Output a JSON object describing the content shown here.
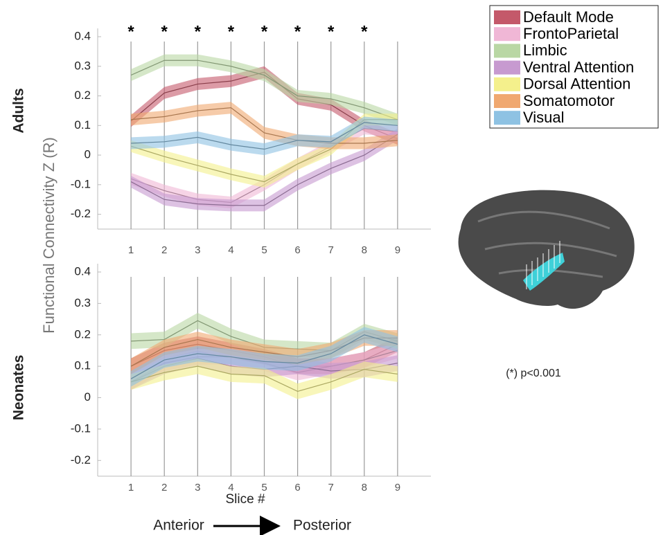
{
  "y_label": "Functional Connectivity Z (R)",
  "x_label": "Slice #",
  "direction": {
    "start": "Anterior",
    "end": "Posterior"
  },
  "footnote": "(*) p<0.001",
  "chart_data": [
    {
      "type": "line",
      "title": "Adults",
      "x": [
        1,
        2,
        3,
        4,
        5,
        6,
        7,
        8,
        9
      ],
      "xlim": [
        0,
        10
      ],
      "xticks": [
        1,
        2,
        3,
        4,
        5,
        6,
        7,
        8,
        9
      ],
      "ylim": [
        -0.25,
        0.4
      ],
      "yticks": [
        -0.2,
        -0.1,
        0,
        0.1,
        0.2,
        0.3,
        0.4
      ],
      "band": 0.02,
      "grid": true,
      "markers": [
        {
          "x": 1,
          "label": "*"
        },
        {
          "x": 2,
          "label": "*"
        },
        {
          "x": 3,
          "label": "*"
        },
        {
          "x": 4,
          "label": "*"
        },
        {
          "x": 5,
          "label": "*"
        },
        {
          "x": 6,
          "label": "*"
        },
        {
          "x": 7,
          "label": "*"
        },
        {
          "x": 8,
          "label": "*"
        }
      ],
      "series": [
        {
          "name": "Default Mode",
          "color": "#c4596a",
          "values": [
            0.115,
            0.21,
            0.24,
            0.25,
            0.28,
            0.19,
            0.17,
            0.1,
            0.055
          ]
        },
        {
          "name": "FrontoParietal",
          "color": "#f0b7d6",
          "values": [
            -0.08,
            -0.12,
            -0.15,
            -0.16,
            -0.1,
            -0.03,
            0.03,
            0.09,
            0.08
          ]
        },
        {
          "name": "Limbic",
          "color": "#b9d7a4",
          "values": [
            0.27,
            0.32,
            0.32,
            0.3,
            0.27,
            0.2,
            0.19,
            0.16,
            0.12
          ]
        },
        {
          "name": "Ventral Attention",
          "color": "#c79ad0",
          "values": [
            -0.09,
            -0.15,
            -0.165,
            -0.17,
            -0.17,
            -0.1,
            -0.045,
            0,
            0.07
          ]
        },
        {
          "name": "Dorsal Attention",
          "color": "#f4f08c",
          "values": [
            0.03,
            -0.005,
            -0.035,
            -0.065,
            -0.09,
            -0.03,
            0.02,
            0.12,
            0.12
          ]
        },
        {
          "name": "Somatomotor",
          "color": "#f0a870",
          "values": [
            0.12,
            0.13,
            0.15,
            0.16,
            0.075,
            0.05,
            0.04,
            0.04,
            0.05
          ]
        },
        {
          "name": "Visual",
          "color": "#8ec2e3",
          "values": [
            0.04,
            0.045,
            0.06,
            0.035,
            0.02,
            0.05,
            0.045,
            0.11,
            0.1
          ]
        }
      ]
    },
    {
      "type": "line",
      "title": "Neonates",
      "x": [
        1,
        2,
        3,
        4,
        5,
        6,
        7,
        8,
        9
      ],
      "xlim": [
        0,
        10
      ],
      "xticks": [
        1,
        2,
        3,
        4,
        5,
        6,
        7,
        8,
        9
      ],
      "ylim": [
        -0.25,
        0.4
      ],
      "yticks": [
        -0.2,
        -0.1,
        0,
        0.1,
        0.2,
        0.3,
        0.4
      ],
      "band": 0.025,
      "grid": true,
      "series": [
        {
          "color": "#c4596a",
          "values": [
            0.1,
            0.15,
            0.17,
            0.15,
            0.13,
            0.1,
            0.1,
            0.12,
            0.17
          ]
        },
        {
          "color": "#f0b7d6",
          "values": [
            0.05,
            0.11,
            0.13,
            0.13,
            0.11,
            0.08,
            0.1,
            0.12,
            0.15
          ]
        },
        {
          "color": "#b9d7a4",
          "values": [
            0.18,
            0.185,
            0.245,
            0.195,
            0.16,
            0.155,
            0.15,
            0.21,
            0.18
          ]
        },
        {
          "color": "#c79ad0",
          "values": [
            0.05,
            0.1,
            0.125,
            0.1,
            0.09,
            0.1,
            0.085,
            0.09,
            0.11
          ]
        },
        {
          "color": "#f4f08c",
          "values": [
            0.05,
            0.08,
            0.1,
            0.075,
            0.07,
            0.02,
            0.05,
            0.09,
            0.075
          ]
        },
        {
          "color": "#f0a870",
          "values": [
            0.1,
            0.16,
            0.185,
            0.16,
            0.145,
            0.13,
            0.15,
            0.19,
            0.19
          ]
        },
        {
          "color": "#8ec2e3",
          "values": [
            0.06,
            0.12,
            0.14,
            0.13,
            0.115,
            0.11,
            0.14,
            0.2,
            0.17
          ]
        }
      ]
    }
  ]
}
